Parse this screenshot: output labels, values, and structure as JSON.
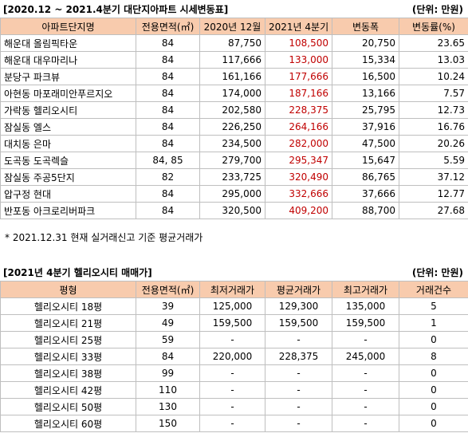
{
  "table1": {
    "title": "[2020.12 ~ 2021.4분기 대단지아파트 시세변동표]",
    "unit": "(단위: 만원)",
    "headers": [
      "아파트단지명",
      "전용면적(㎡)",
      "2020년 12월",
      "2021년 4분기",
      "변동폭",
      "변동률(%)"
    ],
    "rows": [
      {
        "name": "해운대 올림픽타운",
        "area": "84",
        "dec2020": "87,750",
        "q4_2021": "108,500",
        "change": "20,750",
        "rate": "23.65"
      },
      {
        "name": "해운대 대우마리나",
        "area": "84",
        "dec2020": "117,666",
        "q4_2021": "133,000",
        "change": "15,334",
        "rate": "13.03"
      },
      {
        "name": "분당구 파크뷰",
        "area": "84",
        "dec2020": "161,166",
        "q4_2021": "177,666",
        "change": "16,500",
        "rate": "10.24"
      },
      {
        "name": "아현동 마포래미안푸르지오",
        "area": "84",
        "dec2020": "174,000",
        "q4_2021": "187,166",
        "change": "13,166",
        "rate": "7.57"
      },
      {
        "name": "가락동 헬리오시티",
        "area": "84",
        "dec2020": "202,580",
        "q4_2021": "228,375",
        "change": "25,795",
        "rate": "12.73"
      },
      {
        "name": "잠실동 엘스",
        "area": "84",
        "dec2020": "226,250",
        "q4_2021": "264,166",
        "change": "37,916",
        "rate": "16.76"
      },
      {
        "name": "대치동 은마",
        "area": "84",
        "dec2020": "234,500",
        "q4_2021": "282,000",
        "change": "47,500",
        "rate": "20.26"
      },
      {
        "name": "도곡동 도곡렉슬",
        "area": "84, 85",
        "dec2020": "279,700",
        "q4_2021": "295,347",
        "change": "15,647",
        "rate": "5.59"
      },
      {
        "name": "잠실동 주공5단지",
        "area": "82",
        "dec2020": "233,725",
        "q4_2021": "320,490",
        "change": "86,765",
        "rate": "37.12"
      },
      {
        "name": "압구정 현대",
        "area": "84",
        "dec2020": "295,000",
        "q4_2021": "332,666",
        "change": "37,666",
        "rate": "12.77"
      },
      {
        "name": "반포동 아크로리버파크",
        "area": "84",
        "dec2020": "320,500",
        "q4_2021": "409,200",
        "change": "88,700",
        "rate": "27.68"
      }
    ],
    "note": "* 2021.12.31 현재 실거래신고 기준 평균거래가"
  },
  "table2": {
    "title": "[2021년 4분기 헬리오시티 매매가]",
    "unit": "(단위: 만원)",
    "headers": [
      "평형",
      "전용면적(㎡)",
      "최저거래가",
      "평균거래가",
      "최고거래가",
      "거래건수"
    ],
    "rows": [
      {
        "type": "헬리오시티 18평",
        "area": "39",
        "min": "125,000",
        "avg": "129,300",
        "max": "135,000",
        "count": "5"
      },
      {
        "type": "헬리오시티 21평",
        "area": "49",
        "min": "159,500",
        "avg": "159,500",
        "max": "159,500",
        "count": "1"
      },
      {
        "type": "헬리오시티 25평",
        "area": "59",
        "min": "-",
        "avg": "-",
        "max": "-",
        "count": "0"
      },
      {
        "type": "헬리오시티 33평",
        "area": "84",
        "min": "220,000",
        "avg": "228,375",
        "max": "245,000",
        "count": "8"
      },
      {
        "type": "헬리오시티 38평",
        "area": "99",
        "min": "-",
        "avg": "-",
        "max": "-",
        "count": "0"
      },
      {
        "type": "헬리오시티 42평",
        "area": "110",
        "min": "-",
        "avg": "-",
        "max": "-",
        "count": "0"
      },
      {
        "type": "헬리오시티 50평",
        "area": "130",
        "min": "-",
        "avg": "-",
        "max": "-",
        "count": "0"
      },
      {
        "type": "헬리오시티 60평",
        "area": "150",
        "min": "-",
        "avg": "-",
        "max": "-",
        "count": "0"
      }
    ],
    "highlight_row": 3
  },
  "colors": {
    "header_bg": "#f8cbad",
    "emphasis_red": "#c00000",
    "border": "#bfbfbf"
  }
}
